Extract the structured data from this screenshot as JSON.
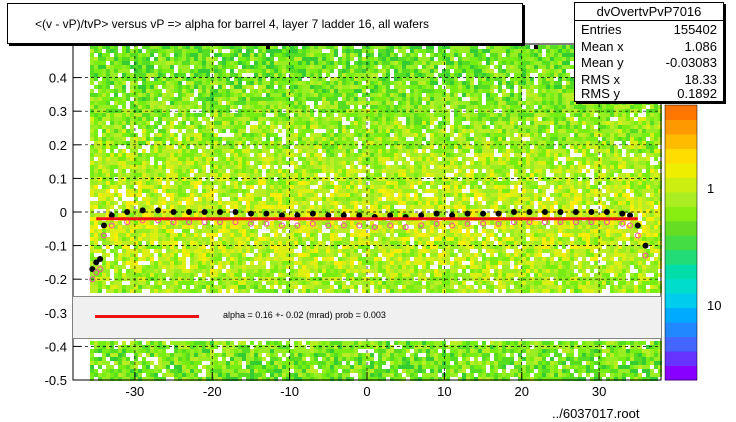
{
  "title": "<(v - vP)/tvP> versus  vP => alpha for barrel 4, layer 7 ladder 16, all wafers",
  "stats": {
    "name": "dvOvertvPvP7016",
    "rows": [
      {
        "label": "Entries",
        "value": "155402"
      },
      {
        "label": "Mean x",
        "value": "1.086"
      },
      {
        "label": "Mean y",
        "value": "-0.03083"
      },
      {
        "label": "RMS x",
        "value": "18.33"
      },
      {
        "label": "RMS y",
        "value": "0.1892"
      }
    ]
  },
  "fit_legend": {
    "text": "alpha =    0.16 +-  0.02 (mrad) prob = 0.003",
    "line_color": "#ee1111"
  },
  "source_label": "../6037017.root",
  "chart_data": {
    "type": "heatmap",
    "xlim": [
      -38,
      38
    ],
    "ylim": [
      -0.5,
      0.5
    ],
    "x_ticks": [
      -30,
      -20,
      -10,
      0,
      10,
      20,
      30
    ],
    "y_ticks": [
      -0.5,
      -0.4,
      -0.3,
      -0.2,
      -0.1,
      0,
      0.1,
      0.2,
      0.3,
      0.4
    ],
    "y_tick_labels": [
      "-0.5",
      "-0.4",
      "-0.3",
      "-0.2",
      "-0.1",
      "0",
      "0.1",
      "0.2",
      "0.3",
      "0.4"
    ],
    "x_tick_labels": [
      "-30",
      "-20",
      "-10",
      "0",
      "10",
      "20",
      "30"
    ],
    "z_tick_labels": [
      "1",
      "10"
    ],
    "grid": true,
    "profile_points": [
      {
        "x": -35.5,
        "y": -0.17
      },
      {
        "x": -35,
        "y": -0.15
      },
      {
        "x": -34.5,
        "y": -0.14
      },
      {
        "x": -34,
        "y": -0.04
      },
      {
        "x": -33,
        "y": -0.01
      },
      {
        "x": -31,
        "y": 0.0
      },
      {
        "x": -29,
        "y": 0.005
      },
      {
        "x": -27,
        "y": 0.005
      },
      {
        "x": -25,
        "y": 0.0
      },
      {
        "x": -23,
        "y": 0.0
      },
      {
        "x": -21,
        "y": 0.0
      },
      {
        "x": -19,
        "y": 0.0
      },
      {
        "x": -17,
        "y": 0.0
      },
      {
        "x": -15,
        "y": -0.005
      },
      {
        "x": -13,
        "y": -0.005
      },
      {
        "x": -11,
        "y": -0.01
      },
      {
        "x": -9,
        "y": -0.01
      },
      {
        "x": -7,
        "y": -0.005
      },
      {
        "x": -5,
        "y": -0.01
      },
      {
        "x": -3,
        "y": -0.01
      },
      {
        "x": -1,
        "y": -0.01
      },
      {
        "x": 1,
        "y": -0.015
      },
      {
        "x": 3,
        "y": -0.01
      },
      {
        "x": 5,
        "y": -0.015
      },
      {
        "x": 7,
        "y": -0.01
      },
      {
        "x": 9,
        "y": -0.005
      },
      {
        "x": 11,
        "y": -0.01
      },
      {
        "x": 13,
        "y": -0.005
      },
      {
        "x": 15,
        "y": -0.005
      },
      {
        "x": 17,
        "y": -0.005
      },
      {
        "x": 19,
        "y": 0.0
      },
      {
        "x": 21,
        "y": 0.0
      },
      {
        "x": 23,
        "y": 0.0
      },
      {
        "x": 25,
        "y": 0.0
      },
      {
        "x": 27,
        "y": 0.0
      },
      {
        "x": 29,
        "y": 0.0
      },
      {
        "x": 31,
        "y": 0.0
      },
      {
        "x": 33,
        "y": -0.005
      },
      {
        "x": 34,
        "y": -0.01
      },
      {
        "x": 35,
        "y": -0.04
      },
      {
        "x": 36,
        "y": -0.1
      }
    ],
    "fit_line": {
      "x": [
        -35,
        35
      ],
      "y": [
        -0.02,
        -0.02
      ]
    }
  },
  "colors": {
    "frame_bg": "#ffffff",
    "grid": "#000000",
    "profile": "#000000",
    "profile_open": "#ff44aa",
    "fit": "#ee1111"
  }
}
